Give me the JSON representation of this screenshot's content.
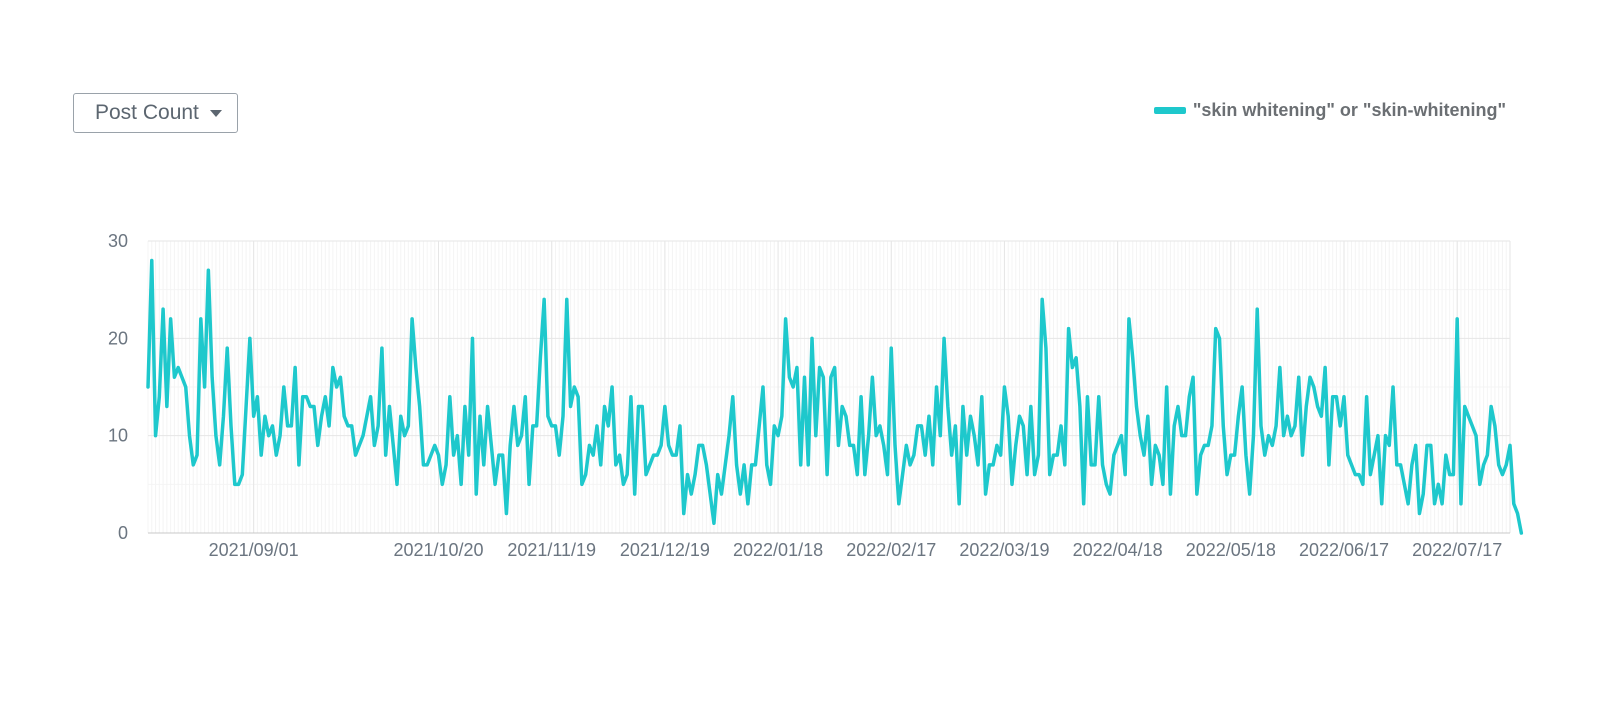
{
  "controls": {
    "metric_label": "Post Count"
  },
  "colors": {
    "series": "#1ec8cc",
    "grid": "#e6e6e6",
    "minor_grid": "#f4f4f4",
    "axis_text": "#6b7580"
  },
  "chart_data": {
    "type": "line",
    "title": "",
    "xlabel": "",
    "ylabel": "",
    "ylim": [
      0,
      30
    ],
    "y_ticks": [
      0,
      10,
      20,
      30
    ],
    "x_ticks": [
      "2021/09/01",
      "2021/10/20",
      "2021/11/19",
      "2021/12/19",
      "2022/01/18",
      "2022/02/17",
      "2022/03/19",
      "2022/04/18",
      "2022/05/18",
      "2022/06/17",
      "2022/07/17"
    ],
    "grid": true,
    "legend_position": "top-right",
    "series": [
      {
        "name": "\"skin whitening\" or \"skin-whitening\"",
        "x_start": "2021/08/04",
        "x_end": "2022/07/31",
        "interval": "day",
        "values": [
          15,
          28,
          10,
          14,
          23,
          13,
          22,
          16,
          17,
          16,
          15,
          10,
          7,
          8,
          22,
          15,
          27,
          16,
          10,
          7,
          12,
          19,
          11,
          5,
          5,
          6,
          13,
          20,
          12,
          14,
          8,
          12,
          10,
          11,
          8,
          10,
          15,
          11,
          11,
          17,
          7,
          14,
          14,
          13,
          13,
          9,
          12,
          14,
          11,
          17,
          15,
          16,
          12,
          11,
          11,
          8,
          9,
          10,
          12,
          14,
          9,
          11,
          19,
          8,
          13,
          9,
          5,
          12,
          10,
          11,
          22,
          17,
          13,
          7,
          7,
          8,
          9,
          8,
          5,
          7,
          14,
          8,
          10,
          5,
          13,
          8,
          20,
          4,
          12,
          7,
          13,
          9,
          5,
          8,
          8,
          2,
          9,
          13,
          9,
          10,
          14,
          5,
          11,
          11,
          18,
          24,
          12,
          11,
          11,
          8,
          12,
          24,
          13,
          15,
          14,
          5,
          6,
          9,
          8,
          11,
          7,
          13,
          11,
          15,
          7,
          8,
          5,
          6,
          14,
          4,
          13,
          13,
          6,
          7,
          8,
          8,
          9,
          13,
          9,
          8,
          8,
          11,
          2,
          6,
          4,
          6,
          9,
          9,
          7,
          4,
          1,
          6,
          4,
          7,
          10,
          14,
          7,
          4,
          7,
          3,
          7,
          7,
          11,
          15,
          7,
          5,
          11,
          10,
          12,
          22,
          16,
          15,
          17,
          7,
          16,
          7,
          20,
          10,
          17,
          16,
          6,
          16,
          17,
          9,
          13,
          12,
          9,
          9,
          6,
          14,
          6,
          10,
          16,
          10,
          11,
          9,
          6,
          19,
          9,
          3,
          6,
          9,
          7,
          8,
          11,
          11,
          8,
          12,
          7,
          15,
          10,
          20,
          13,
          8,
          11,
          3,
          13,
          8,
          12,
          10,
          7,
          14,
          4,
          7,
          7,
          9,
          8,
          15,
          12,
          5,
          9,
          12,
          11,
          6,
          13,
          6,
          8,
          24,
          19,
          6,
          8,
          8,
          11,
          7,
          21,
          17,
          18,
          13,
          3,
          14,
          7,
          7,
          14,
          7,
          5,
          4,
          8,
          9,
          10,
          6,
          22,
          18,
          13,
          10,
          8,
          12,
          5,
          9,
          8,
          5,
          15,
          4,
          11,
          13,
          10,
          10,
          14,
          16,
          4,
          8,
          9,
          9,
          11,
          21,
          20,
          11,
          6,
          8,
          8,
          12,
          15,
          8,
          4,
          10,
          23,
          11,
          8,
          10,
          9,
          11,
          17,
          10,
          12,
          10,
          11,
          16,
          8,
          13,
          16,
          15,
          13,
          12,
          17,
          7,
          14,
          14,
          11,
          14,
          8,
          7,
          6,
          6,
          5,
          14,
          6,
          8,
          10,
          3,
          10,
          9,
          15,
          7,
          7,
          5,
          3,
          7,
          9,
          2,
          4,
          9,
          9,
          3,
          5,
          3,
          8,
          6,
          6,
          22,
          3,
          13,
          12,
          11,
          10,
          5,
          7,
          8,
          13,
          11,
          7,
          6,
          7,
          9,
          3,
          2,
          0
        ]
      }
    ]
  }
}
